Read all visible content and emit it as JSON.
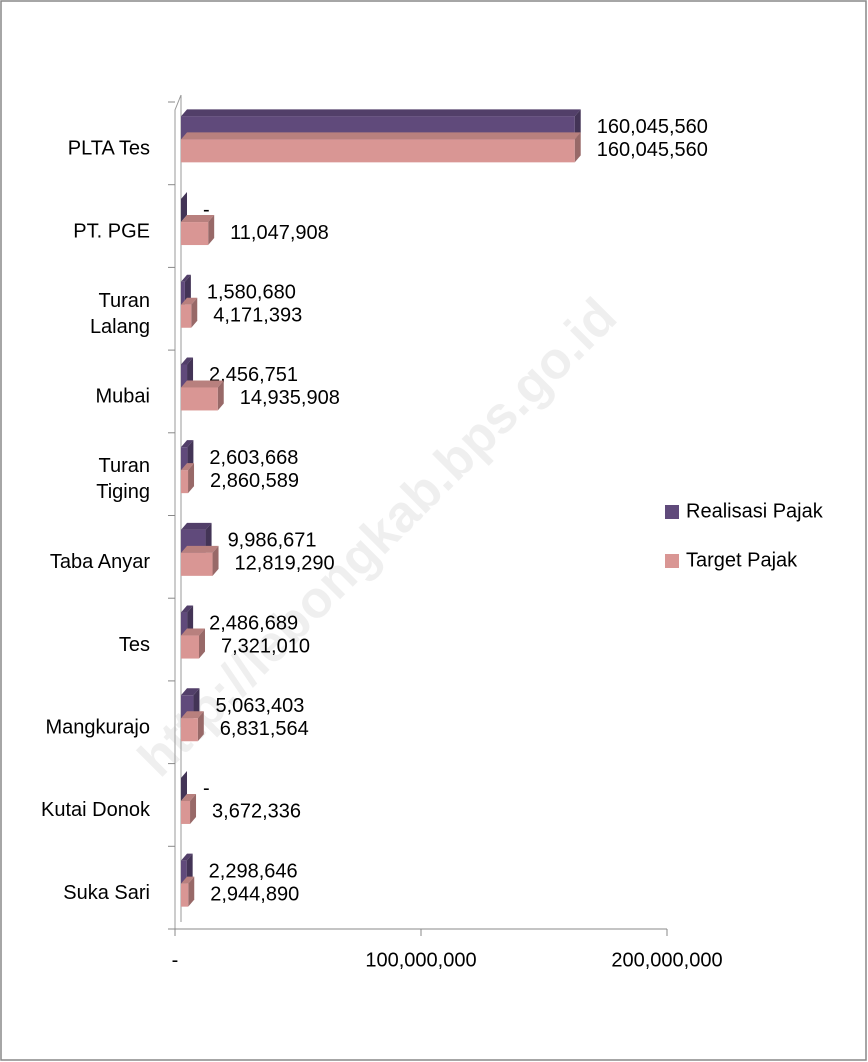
{
  "chart_data": {
    "type": "bar3d_horizontal",
    "watermark": "http://lebongkab.bps.go.id",
    "categories": [
      "PLTA Tes",
      "PT. PGE",
      "Turan\nLalang",
      "Mubai",
      "Turan\nTiging",
      "Taba Anyar",
      "Tes",
      "Mangkurajo",
      "Kutai Donok",
      "Suka Sari"
    ],
    "series": [
      {
        "name": "Realisasi Pajak",
        "color": "#604a7b",
        "values": [
          160045560,
          0,
          1580680,
          2456751,
          2603668,
          9986671,
          2486689,
          5063403,
          0,
          2298646
        ],
        "value_labels": [
          "160,045,560",
          "-",
          "1,580,680",
          "2,456,751",
          "2,603,668",
          "9,986,671",
          "2,486,689",
          "5,063,403",
          "-",
          "2,298,646"
        ]
      },
      {
        "name": "Target Pajak",
        "color": "#d99694",
        "values": [
          160045560,
          11047908,
          4171393,
          14935908,
          2860589,
          12819290,
          7321010,
          6831564,
          3672336,
          2944890
        ],
        "value_labels": [
          "160,045,560",
          "11,047,908",
          "4,171,393",
          "14,935,908",
          "2,860,589",
          "12,819,290",
          "7,321,010",
          "6,831,564",
          "3,672,336",
          "2,944,890"
        ]
      }
    ],
    "xlim": [
      0,
      200000000
    ],
    "xticks": [
      {
        "value": 0,
        "label": "-"
      },
      {
        "value": 100000000,
        "label": "100,000,000"
      },
      {
        "value": 200000000,
        "label": "200,000,000"
      }
    ],
    "legend": "right"
  }
}
